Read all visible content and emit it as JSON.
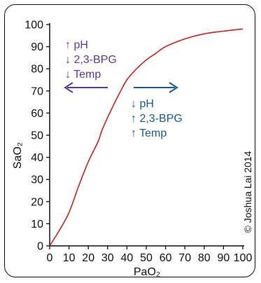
{
  "chart_data": {
    "type": "line",
    "xlabel": "PaO₂",
    "ylabel": "SaO₂",
    "xlim": [
      0,
      100
    ],
    "ylim": [
      0,
      100
    ],
    "x_ticks": [
      0,
      10,
      20,
      30,
      40,
      50,
      60,
      70,
      80,
      90,
      100
    ],
    "y_ticks": [
      0,
      10,
      20,
      30,
      40,
      50,
      60,
      70,
      80,
      90,
      100
    ],
    "curve_color": "#cc2222",
    "series": [
      {
        "x": [
          0,
          5,
          10,
          15,
          20,
          25,
          27,
          30,
          35,
          40,
          45,
          50,
          55,
          60,
          70,
          80,
          90,
          100
        ],
        "y": [
          0,
          7,
          15,
          27,
          38,
          47,
          52,
          58,
          67,
          75,
          80,
          84,
          87,
          90,
          93.5,
          95.8,
          97,
          98
        ]
      }
    ],
    "annotations": {
      "left_shift": {
        "lines": [
          "↑ pH",
          "↓ 2,3-BPG",
          "↓ Temp"
        ],
        "color": "#5b3b9a",
        "arrow_direction": "left"
      },
      "right_shift": {
        "lines": [
          "↓ pH",
          "↑ 2,3-BPG",
          "↑ Temp"
        ],
        "color": "#1a5a92",
        "arrow_direction": "right"
      }
    },
    "copyright": "© Joshua Lai 2014"
  }
}
